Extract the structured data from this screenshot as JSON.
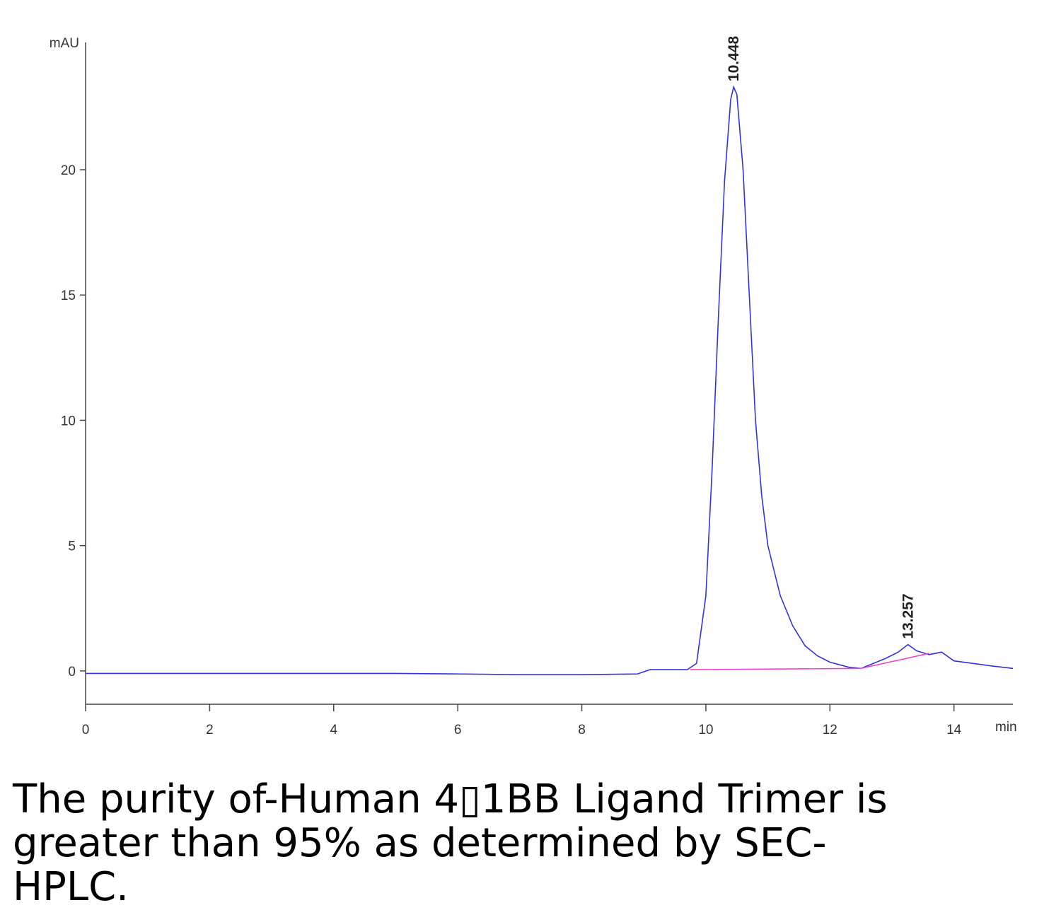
{
  "chart_data": {
    "type": "line",
    "ylabel": "mAU",
    "xlabel": "min",
    "xlim": [
      0,
      14.95
    ],
    "ylim": [
      -1.33,
      25.08
    ],
    "xticks": [
      0,
      2,
      4,
      6,
      8,
      10,
      12,
      14
    ],
    "yticks": [
      0,
      5,
      10,
      15,
      20
    ],
    "series": [
      {
        "color": "#3333dd",
        "x": [
          0,
          1,
          2,
          3,
          4,
          5,
          6,
          7,
          8,
          8.9,
          9.1,
          9.7,
          9.85,
          10.0,
          10.1,
          10.2,
          10.3,
          10.4,
          10.448,
          10.5,
          10.6,
          10.7,
          10.8,
          10.9,
          11.0,
          11.2,
          11.4,
          11.6,
          11.8,
          12.0,
          12.3,
          12.5,
          12.7,
          12.9,
          13.1,
          13.257,
          13.4,
          13.6,
          13.8,
          14.0,
          14.3,
          14.6,
          14.95
        ],
        "values": [
          -0.1,
          -0.1,
          -0.1,
          -0.1,
          -0.1,
          -0.1,
          -0.12,
          -0.15,
          -0.15,
          -0.12,
          0.05,
          0.05,
          0.3,
          3,
          8,
          14,
          19.5,
          22.8,
          23.3,
          23,
          20,
          15,
          10,
          7,
          5,
          3,
          1.8,
          1.0,
          0.6,
          0.35,
          0.15,
          0.1,
          0.3,
          0.5,
          0.75,
          1.05,
          0.8,
          0.65,
          0.75,
          0.4,
          0.3,
          0.2,
          0.1
        ]
      },
      {
        "color": "#ee44cc",
        "x": [
          9.75,
          12.5,
          13.6
        ],
        "values": [
          0.05,
          0.1,
          0.7
        ]
      }
    ],
    "annotations": [
      {
        "text": "10.448",
        "x": 10.448,
        "y": 23.3
      },
      {
        "text": "13.257",
        "x": 13.257,
        "y": 1.05
      }
    ],
    "caption": "The purity of-Human 4▯1BB Ligand Trimer is greater than 95% as determined by SEC-HPLC."
  }
}
